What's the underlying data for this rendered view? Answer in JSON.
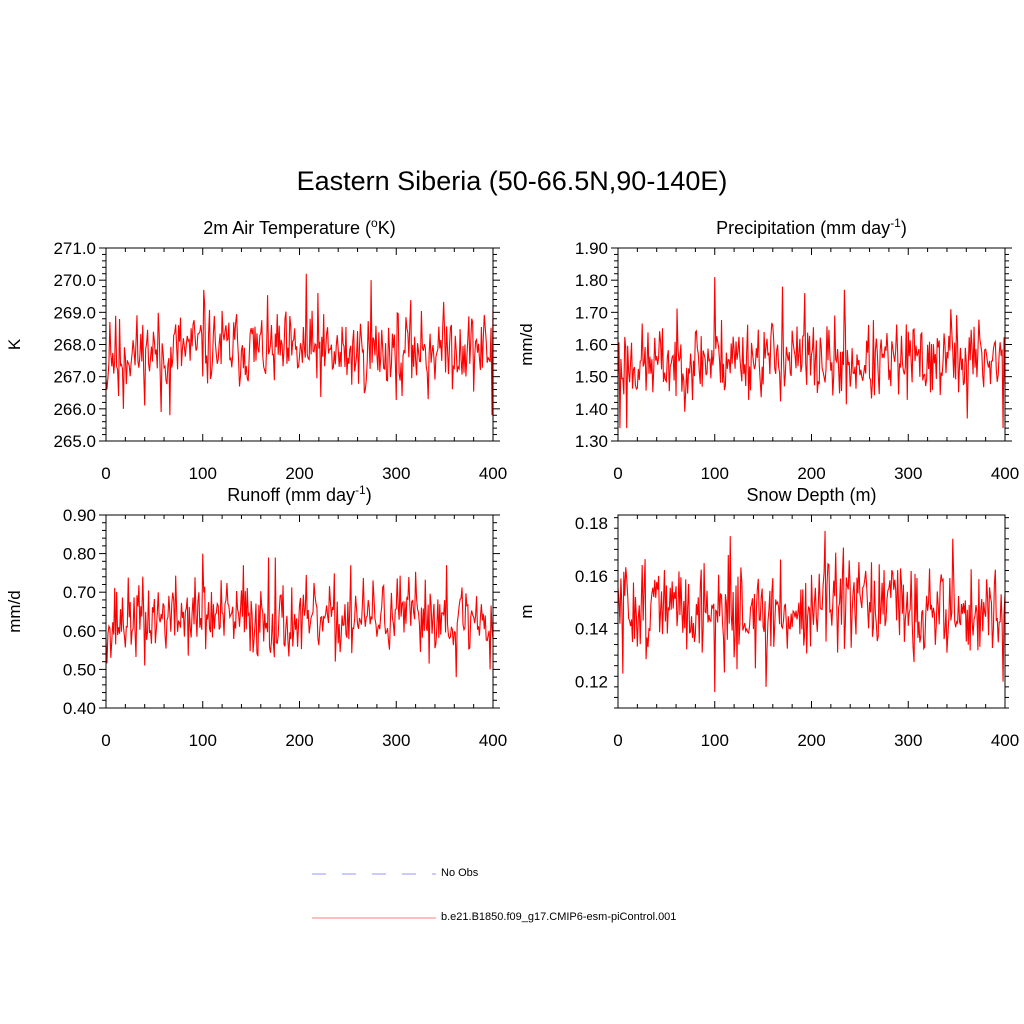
{
  "title": "Eastern Siberia (50-66.5N,90-140E)",
  "colors": {
    "model": "#ff0000",
    "obs": "#aaaaff",
    "axis": "#000000"
  },
  "legend": {
    "obs_label": "No Obs",
    "model_label": "b.e21.B1850.f09_g17.CMIP6-esm-piControl.001"
  },
  "chart_data": [
    {
      "type": "line",
      "title_main": "2m Air Temperature (",
      "title_sup": "o",
      "title_tail": "K)",
      "ylabel": "K",
      "xlim": [
        0,
        400
      ],
      "ylim": [
        265.0,
        271.0
      ],
      "xticks": [
        0,
        100,
        200,
        300,
        400
      ],
      "yticks": [
        "265.0",
        "266.0",
        "267.0",
        "268.0",
        "269.0",
        "270.0",
        "271.0"
      ],
      "series_name": "b.e21.B1850.f09_g17.CMIP6-esm-piControl.001",
      "mean": 267.8,
      "amp": 0.75,
      "seed": 11,
      "anchors": [
        [
          1,
          266.6
        ],
        [
          4,
          268.7
        ],
        [
          13,
          266.4
        ],
        [
          18,
          266.0
        ],
        [
          57,
          265.9
        ],
        [
          66,
          265.8
        ],
        [
          101,
          269.7
        ],
        [
          207,
          270.2
        ],
        [
          219,
          269.6
        ],
        [
          274,
          270.0
        ],
        [
          306,
          266.4
        ],
        [
          333,
          266.3
        ],
        [
          399,
          265.8
        ],
        [
          400,
          269.2
        ]
      ]
    },
    {
      "type": "line",
      "title_main": "Precipitation (mm day",
      "title_sup": "-1",
      "title_tail": ")",
      "ylabel": "mm/d",
      "xlim": [
        0,
        400
      ],
      "ylim": [
        1.3,
        1.9
      ],
      "xticks": [
        0,
        100,
        200,
        300,
        400
      ],
      "yticks": [
        "1.30",
        "1.40",
        "1.50",
        "1.60",
        "1.70",
        "1.80",
        "1.90"
      ],
      "series_name": "b.e21.B1850.f09_g17.CMIP6-esm-piControl.001",
      "mean": 1.55,
      "amp": 0.075,
      "seed": 23,
      "anchors": [
        [
          2,
          1.34
        ],
        [
          9,
          1.34
        ],
        [
          100,
          1.81
        ],
        [
          170,
          1.78
        ],
        [
          193,
          1.76
        ],
        [
          234,
          1.77
        ],
        [
          344,
          1.71
        ],
        [
          361,
          1.37
        ],
        [
          398,
          1.34
        ],
        [
          400,
          1.47
        ]
      ]
    },
    {
      "type": "line",
      "title_main": "Runoff (mm day",
      "title_sup": "-1",
      "title_tail": ")",
      "ylabel": "mm/d",
      "xlim": [
        0,
        400
      ],
      "ylim": [
        0.4,
        0.9
      ],
      "xticks": [
        0,
        100,
        200,
        300,
        400
      ],
      "yticks": [
        "0.40",
        "0.50",
        "0.60",
        "0.70",
        "0.80",
        "0.90"
      ],
      "series_name": "b.e21.B1850.f09_g17.CMIP6-esm-piControl.001",
      "mean": 0.63,
      "amp": 0.06,
      "seed": 37,
      "anchors": [
        [
          5,
          0.53
        ],
        [
          40,
          0.51
        ],
        [
          100,
          0.8
        ],
        [
          142,
          0.77
        ],
        [
          168,
          0.79
        ],
        [
          175,
          0.79
        ],
        [
          253,
          0.77
        ],
        [
          352,
          0.77
        ],
        [
          362,
          0.48
        ],
        [
          397,
          0.5
        ],
        [
          400,
          0.58
        ]
      ]
    },
    {
      "type": "line",
      "title_main": "Snow Depth (m)",
      "title_sup": "",
      "title_tail": "",
      "ylabel": "m",
      "xlim": [
        0,
        400
      ],
      "ylim": [
        0.11,
        0.183
      ],
      "xticks": [
        0,
        100,
        200,
        300,
        400
      ],
      "yticks": [
        "0.12",
        "0.14",
        "0.16",
        "0.18"
      ],
      "ytick_values": [
        0.12,
        0.14,
        0.16,
        0.18
      ],
      "series_name": "b.e21.B1850.f09_g17.CMIP6-esm-piControl.001",
      "mean": 0.147,
      "amp": 0.011,
      "seed": 51,
      "anchors": [
        [
          5,
          0.123
        ],
        [
          100,
          0.116
        ],
        [
          116,
          0.175
        ],
        [
          153,
          0.118
        ],
        [
          214,
          0.177
        ],
        [
          346,
          0.174
        ],
        [
          398,
          0.12
        ],
        [
          400,
          0.153
        ]
      ]
    }
  ]
}
